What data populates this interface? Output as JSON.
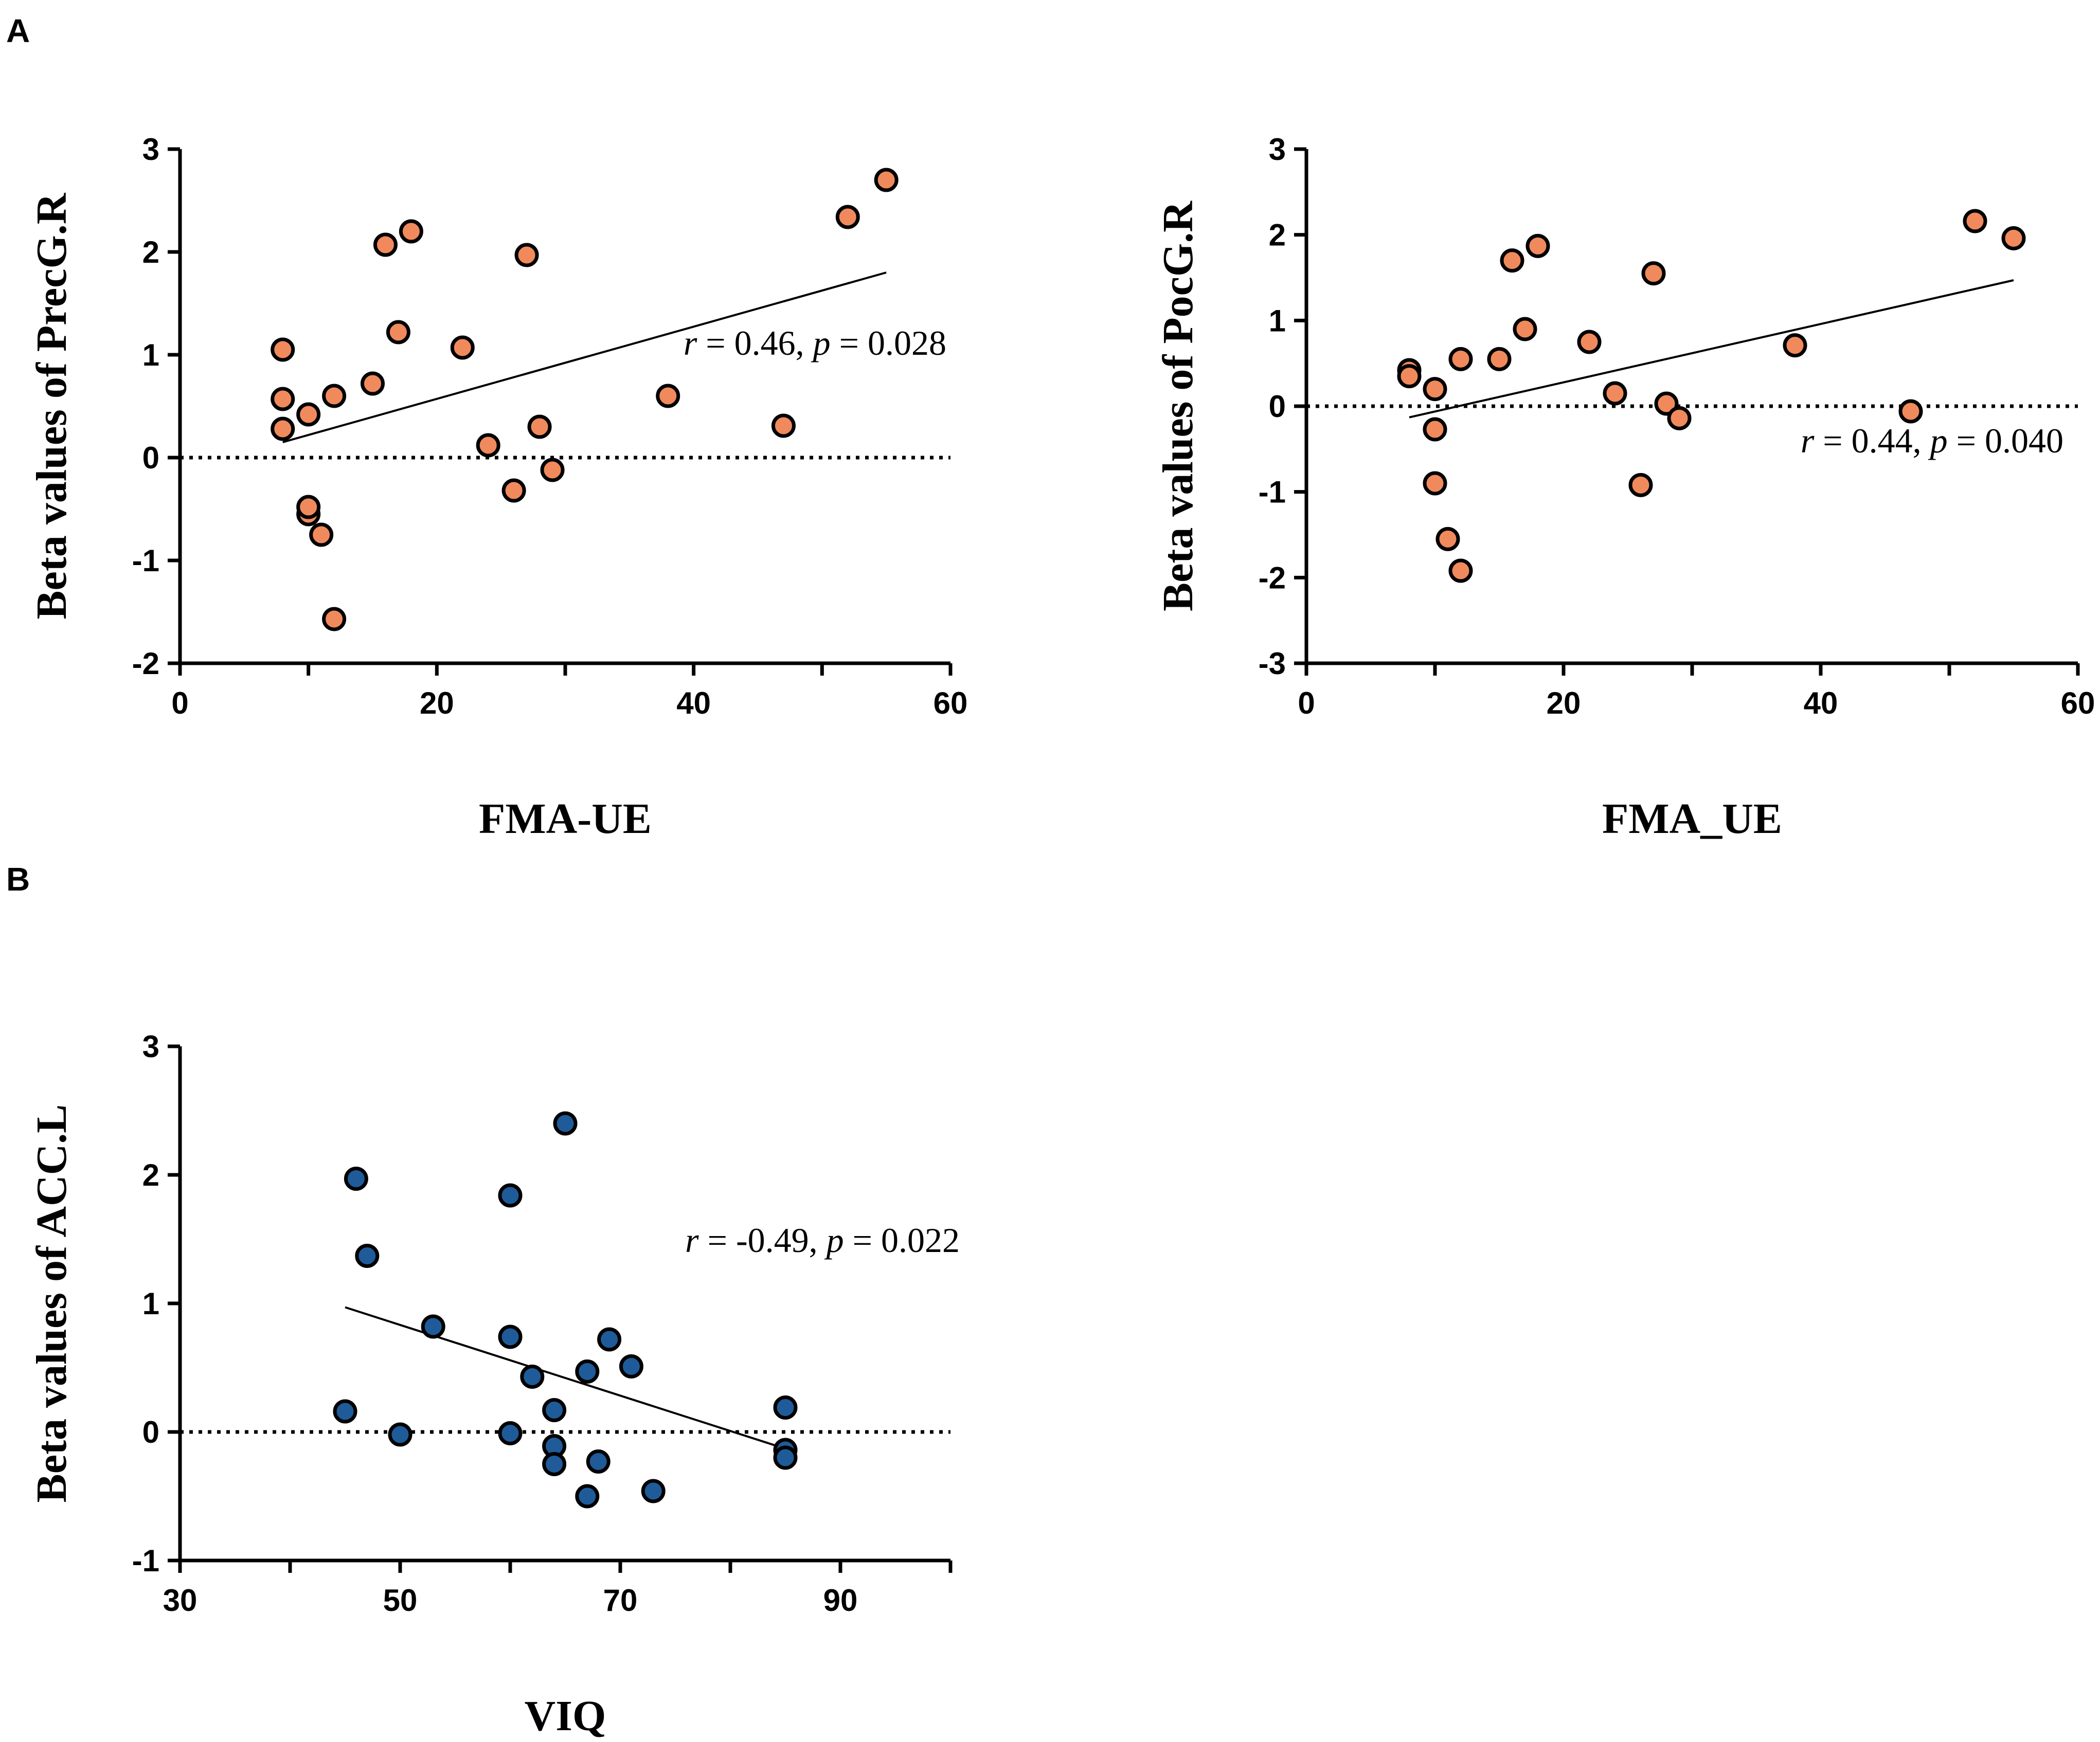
{
  "panel_labels": [
    "A",
    "B"
  ],
  "chart_data": [
    {
      "type": "scatter",
      "panel": "A",
      "xlabel": "FMA-UE",
      "ylabel": "Beta values of PrecG.R",
      "xlim": [
        0,
        60
      ],
      "ylim": [
        -2,
        3
      ],
      "xticks": [
        "0",
        "20",
        "40",
        "60"
      ],
      "yticks": [
        "-2",
        "-1",
        "0",
        "1",
        "2",
        "3"
      ],
      "point_color": "#f08a5d",
      "annotation": {
        "r_sym": "r",
        "r_text": " = 0.46, ",
        "p_sym": "p",
        "p_text": " = 0.028"
      },
      "fit_line": {
        "x": [
          8,
          55
        ],
        "y": [
          0.15,
          1.8
        ]
      },
      "reference_line_y": 0,
      "points": [
        {
          "x": 8,
          "y": 1.05
        },
        {
          "x": 8,
          "y": 0.57
        },
        {
          "x": 8,
          "y": 0.28
        },
        {
          "x": 10,
          "y": 0.42
        },
        {
          "x": 10,
          "y": -0.55
        },
        {
          "x": 10,
          "y": -0.48
        },
        {
          "x": 11,
          "y": -0.75
        },
        {
          "x": 12,
          "y": 0.6
        },
        {
          "x": 12,
          "y": -1.57
        },
        {
          "x": 15,
          "y": 0.72
        },
        {
          "x": 16,
          "y": 2.07
        },
        {
          "x": 17,
          "y": 1.22
        },
        {
          "x": 18,
          "y": 2.2
        },
        {
          "x": 22,
          "y": 1.07
        },
        {
          "x": 24,
          "y": 0.12
        },
        {
          "x": 26,
          "y": -0.32
        },
        {
          "x": 27,
          "y": 1.97
        },
        {
          "x": 28,
          "y": 0.3
        },
        {
          "x": 29,
          "y": -0.12
        },
        {
          "x": 38,
          "y": 0.6
        },
        {
          "x": 47,
          "y": 0.31
        },
        {
          "x": 52,
          "y": 2.34
        },
        {
          "x": 55,
          "y": 2.7
        }
      ]
    },
    {
      "type": "scatter",
      "panel": "A",
      "xlabel": "FMA_UE",
      "ylabel": "Beta values of PocG.R",
      "xlim": [
        0,
        60
      ],
      "ylim": [
        -3,
        3
      ],
      "xticks": [
        "0",
        "20",
        "40",
        "60"
      ],
      "yticks": [
        "-3",
        "-2",
        "-1",
        "0",
        "1",
        "2",
        "3"
      ],
      "point_color": "#f08a5d",
      "annotation": {
        "r_sym": "r",
        "r_text": " = 0.44, ",
        "p_sym": "p",
        "p_text": " = 0.040"
      },
      "fit_line": {
        "x": [
          8,
          55
        ],
        "y": [
          -0.13,
          1.47
        ]
      },
      "reference_line_y": 0,
      "points": [
        {
          "x": 8,
          "y": 0.42
        },
        {
          "x": 8,
          "y": 0.35
        },
        {
          "x": 10,
          "y": 0.2
        },
        {
          "x": 10,
          "y": -0.27
        },
        {
          "x": 10,
          "y": -0.9
        },
        {
          "x": 11,
          "y": -1.55
        },
        {
          "x": 12,
          "y": 0.55
        },
        {
          "x": 12,
          "y": -1.92
        },
        {
          "x": 15,
          "y": 0.55
        },
        {
          "x": 16,
          "y": 1.7
        },
        {
          "x": 17,
          "y": 0.9
        },
        {
          "x": 18,
          "y": 1.87
        },
        {
          "x": 22,
          "y": 0.75
        },
        {
          "x": 24,
          "y": 0.15
        },
        {
          "x": 26,
          "y": -0.92
        },
        {
          "x": 27,
          "y": 1.55
        },
        {
          "x": 28,
          "y": 0.03
        },
        {
          "x": 29,
          "y": -0.14
        },
        {
          "x": 38,
          "y": 0.71
        },
        {
          "x": 47,
          "y": -0.06
        },
        {
          "x": 52,
          "y": 2.16
        },
        {
          "x": 55,
          "y": 1.96
        }
      ]
    },
    {
      "type": "scatter",
      "panel": "B",
      "xlabel": "VIQ",
      "ylabel": "Beta values of ACC.L",
      "xlim": [
        30,
        100
      ],
      "ylim": [
        -1,
        3
      ],
      "xticks": [
        "30",
        "50",
        "70",
        "90"
      ],
      "yticks": [
        "-1",
        "0",
        "1",
        "2",
        "3"
      ],
      "point_color": "#1f5b99",
      "annotation": {
        "r_sym": "r",
        "r_text": " = -0.49, ",
        "p_sym": "p",
        "p_text": " = 0.022"
      },
      "fit_line": {
        "x": [
          45,
          85
        ],
        "y": [
          0.97,
          -0.13
        ]
      },
      "reference_line_y": 0,
      "points": [
        {
          "x": 45,
          "y": 0.16
        },
        {
          "x": 46,
          "y": 1.97
        },
        {
          "x": 47,
          "y": 1.37
        },
        {
          "x": 50,
          "y": -0.02
        },
        {
          "x": 53,
          "y": 0.82
        },
        {
          "x": 60,
          "y": 1.84
        },
        {
          "x": 60,
          "y": 0.74
        },
        {
          "x": 60,
          "y": -0.01
        },
        {
          "x": 62,
          "y": 0.43
        },
        {
          "x": 64,
          "y": 0.17
        },
        {
          "x": 64,
          "y": -0.11
        },
        {
          "x": 64,
          "y": -0.25
        },
        {
          "x": 65,
          "y": 2.4
        },
        {
          "x": 67,
          "y": 0.47
        },
        {
          "x": 67,
          "y": -0.5
        },
        {
          "x": 68,
          "y": -0.23
        },
        {
          "x": 69,
          "y": 0.72
        },
        {
          "x": 71,
          "y": 0.51
        },
        {
          "x": 73,
          "y": -0.46
        },
        {
          "x": 85,
          "y": 0.19
        },
        {
          "x": 85,
          "y": -0.14
        },
        {
          "x": 85,
          "y": -0.2
        }
      ]
    }
  ]
}
